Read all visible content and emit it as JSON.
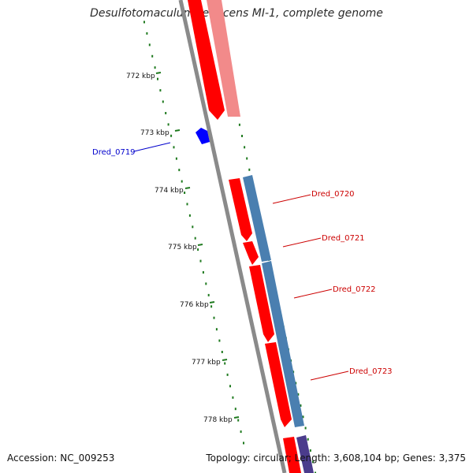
{
  "title": "Desulfotomaculum reducens MI-1, complete genome",
  "footer": {
    "accession": "Accession: NC_009253",
    "stats": "Topology: circular; Length: 3,608,104 bp; Genes: 3,375"
  },
  "ticks": [
    {
      "label": "772 kbp"
    },
    {
      "label": "773 kbp"
    },
    {
      "label": "774 kbp"
    },
    {
      "label": "775 kbp"
    },
    {
      "label": "776 kbp"
    },
    {
      "label": "777 kbp"
    },
    {
      "label": "778 kbp"
    }
  ],
  "genes": [
    {
      "label": "Dred_0719",
      "color": "#0000cc"
    },
    {
      "label": "Dred_0720",
      "color": "#cc0000"
    },
    {
      "label": "Dred_0721",
      "color": "#cc0000"
    },
    {
      "label": "Dred_0722",
      "color": "#cc0000"
    },
    {
      "label": "Dred_0723",
      "color": "#cc0000"
    }
  ],
  "colors": {
    "backbone": "#8a8a8a",
    "forward_cds": "#ff0000",
    "forward_cds_faded": "#f28a8a",
    "reverse_cds": "#4a7fb0",
    "reverse_cds_dark": "#4b3c8c",
    "tick": "#1f7a1f"
  }
}
